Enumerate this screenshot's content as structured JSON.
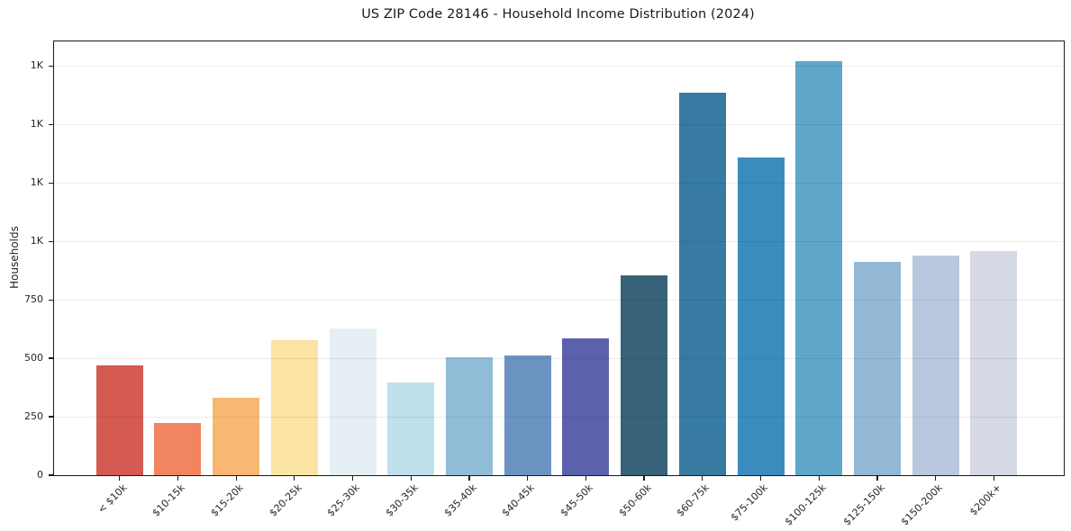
{
  "chart_data": {
    "type": "bar",
    "title": "US ZIP Code 28146 - Household Income Distribution (2024)",
    "xlabel": "",
    "ylabel": "Households",
    "categories": [
      "< $10k",
      "$10-15k",
      "$15-20k",
      "$20-25k",
      "$25-30k",
      "$30-35k",
      "$35-40k",
      "$40-45k",
      "$45-50k",
      "$50-60k",
      "$60-75k",
      "$75-100k",
      "$100-125k",
      "$125-150k",
      "$150-200k",
      "$200k+"
    ],
    "values": [
      470,
      222,
      330,
      578,
      629,
      398,
      506,
      511,
      586,
      856,
      1636,
      1359,
      1770,
      913,
      941,
      957
    ],
    "bar_colors": [
      "#d45a52",
      "#f0855f",
      "#f8b871",
      "#fbe3a3",
      "#e6f0f4",
      "#bfdfea",
      "#90bcd8",
      "#6b93c2",
      "#5c61ae",
      "#38627a",
      "#377ba3",
      "#3a8cbf",
      "#5fa7ca",
      "#92b8d6",
      "#b8c8de",
      "#d5d8e5"
    ],
    "ylim": [
      0,
      1855
    ],
    "yticks": [
      {
        "value": 0,
        "label": "0"
      },
      {
        "value": 250,
        "label": "250"
      },
      {
        "value": 500,
        "label": "500"
      },
      {
        "value": 750,
        "label": "750"
      },
      {
        "value": 1000,
        "label": "1K"
      },
      {
        "value": 1250,
        "label": "1K"
      },
      {
        "value": 1500,
        "label": "1K"
      },
      {
        "value": 1750,
        "label": "1K"
      }
    ],
    "grid": "horizontal",
    "legend": "none",
    "x_tick_rotation_deg": 45
  },
  "colors": {
    "background": "#ffffff",
    "spine": "#1a1a1a",
    "text": "#262626",
    "grid": "rgba(0,0,0,0.075)"
  }
}
